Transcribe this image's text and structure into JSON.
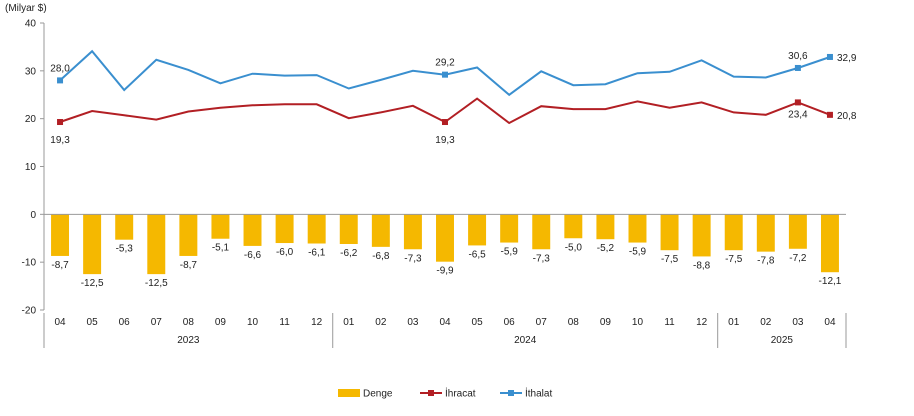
{
  "chart_data": {
    "type": "bar",
    "unit_label": "(Milyar $)",
    "ylim": [
      -20,
      40
    ],
    "yticks": [
      -20,
      -10,
      0,
      10,
      20,
      30,
      40
    ],
    "grid": false,
    "legend_position": "bottom",
    "categories": [
      "04",
      "05",
      "06",
      "07",
      "08",
      "09",
      "10",
      "11",
      "12",
      "01",
      "02",
      "03",
      "04",
      "05",
      "06",
      "07",
      "08",
      "09",
      "10",
      "11",
      "12",
      "01",
      "02",
      "03",
      "04"
    ],
    "year_groups": [
      {
        "label": "2023",
        "start": 0,
        "end": 8
      },
      {
        "label": "2024",
        "start": 9,
        "end": 20
      },
      {
        "label": "2025",
        "start": 21,
        "end": 24
      }
    ],
    "series": [
      {
        "name": "Denge",
        "type": "bar",
        "color": "#f5b800",
        "values": [
          -8.7,
          -12.5,
          -5.3,
          -12.5,
          -8.7,
          -5.1,
          -6.6,
          -6.0,
          -6.1,
          -6.2,
          -6.8,
          -7.3,
          -9.9,
          -6.5,
          -5.9,
          -7.3,
          -5.0,
          -5.2,
          -5.9,
          -7.5,
          -8.8,
          -7.5,
          -7.8,
          -7.2,
          -12.1
        ],
        "labels": [
          "-8,7",
          "-12,5",
          "-5,3",
          "-12,5",
          "-8,7",
          "-5,1",
          "-6,6",
          "-6,0",
          "-6,1",
          "-6,2",
          "-6,8",
          "-7,3",
          "-9,9",
          "-6,5",
          "-5,9",
          "-7,3",
          "-5,0",
          "-5,2",
          "-5,9",
          "-7,5",
          "-8,8",
          "-7,5",
          "-7,8",
          "-7,2",
          "-12,1"
        ]
      },
      {
        "name": "İhracat",
        "type": "line",
        "color": "#b21f24",
        "values": [
          19.3,
          21.6,
          20.7,
          19.8,
          21.5,
          22.3,
          22.8,
          23.0,
          23.0,
          20.1,
          21.3,
          22.7,
          19.3,
          24.2,
          19.1,
          22.6,
          22.0,
          22.0,
          23.6,
          22.3,
          23.4,
          21.3,
          20.8,
          23.4,
          20.8
        ],
        "labeled": [
          {
            "index": 0,
            "text": "19,3"
          },
          {
            "index": 12,
            "text": "19,3"
          },
          {
            "index": 23,
            "text": "23,4"
          },
          {
            "index": 24,
            "text": "20,8"
          }
        ]
      },
      {
        "name": "İthalat",
        "type": "line",
        "color": "#3a8fcf",
        "values": [
          28.0,
          34.1,
          26.0,
          32.3,
          30.2,
          27.4,
          29.4,
          29.0,
          29.1,
          26.3,
          28.1,
          30.0,
          29.2,
          30.7,
          25.0,
          29.9,
          27.0,
          27.2,
          29.5,
          29.8,
          32.2,
          28.8,
          28.6,
          30.6,
          32.9
        ],
        "labeled": [
          {
            "index": 0,
            "text": "28,0"
          },
          {
            "index": 12,
            "text": "29,2"
          },
          {
            "index": 23,
            "text": "30,6"
          },
          {
            "index": 24,
            "text": "32,9"
          }
        ]
      }
    ]
  }
}
